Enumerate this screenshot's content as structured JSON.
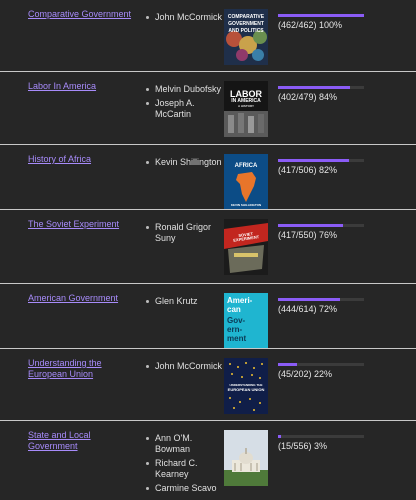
{
  "books": [
    {
      "title": "Comparative Government",
      "authors": [
        "John McCormick"
      ],
      "cover_text": [
        "COMPARATIVE",
        "GOVERNMENT",
        "AND POLITICS"
      ],
      "cover_icon": "world-map-cover",
      "progress_text": "(462/462) 100%",
      "progress_fraction": 1.0
    },
    {
      "title": "Labor In America",
      "authors": [
        "Melvin Dubofsky",
        "Joseph A. McCartin"
      ],
      "cover_text": [
        "LABOR",
        "IN AMERICA",
        "A HISTORY"
      ],
      "cover_icon": "crowd-photo-cover",
      "progress_text": "(402/479) 84%",
      "progress_fraction": 0.84
    },
    {
      "title": "History of Africa",
      "authors": [
        "Kevin Shillington"
      ],
      "cover_text": [
        "AFRICA",
        "KEVIN SHILLINGTON"
      ],
      "cover_icon": "africa-map-cover",
      "progress_text": "(417/506) 82%",
      "progress_fraction": 0.82
    },
    {
      "title": "The Soviet Experiment",
      "authors": [
        "Ronald Grigor Suny"
      ],
      "cover_text": [
        "SOVIET EXPERIMENT"
      ],
      "cover_icon": "soviet-poster-cover",
      "progress_text": "(417/550) 76%",
      "progress_fraction": 0.76
    },
    {
      "title": "American Government",
      "authors": [
        "Glen Krutz"
      ],
      "cover_text": [
        "Ameri-",
        "can",
        "Gov-",
        "ern-",
        "ment"
      ],
      "cover_icon": "cyan-text-cover",
      "progress_text": "(444/614) 72%",
      "progress_fraction": 0.72
    },
    {
      "title": "Understanding the European Union",
      "authors": [
        "John McCormick"
      ],
      "cover_text": [
        "UNDERSTANDING THE",
        "EUROPEAN UNION"
      ],
      "cover_icon": "eu-stars-cover",
      "progress_text": "(45/202) 22%",
      "progress_fraction": 0.22
    },
    {
      "title": "State and Local Government",
      "authors": [
        "Ann O'M. Bowman",
        "Richard C. Kearney",
        "Carmine Scavo"
      ],
      "cover_text": [],
      "cover_icon": "capitol-building-cover",
      "progress_text": "(15/556) 3%",
      "progress_fraction": 0.03
    }
  ],
  "colors": {
    "background": "#262626",
    "link": "#a78bfa",
    "progress_fill": "#8b5cf6",
    "progress_track": "#3b3b3b",
    "divider": "#c8c8c8"
  }
}
